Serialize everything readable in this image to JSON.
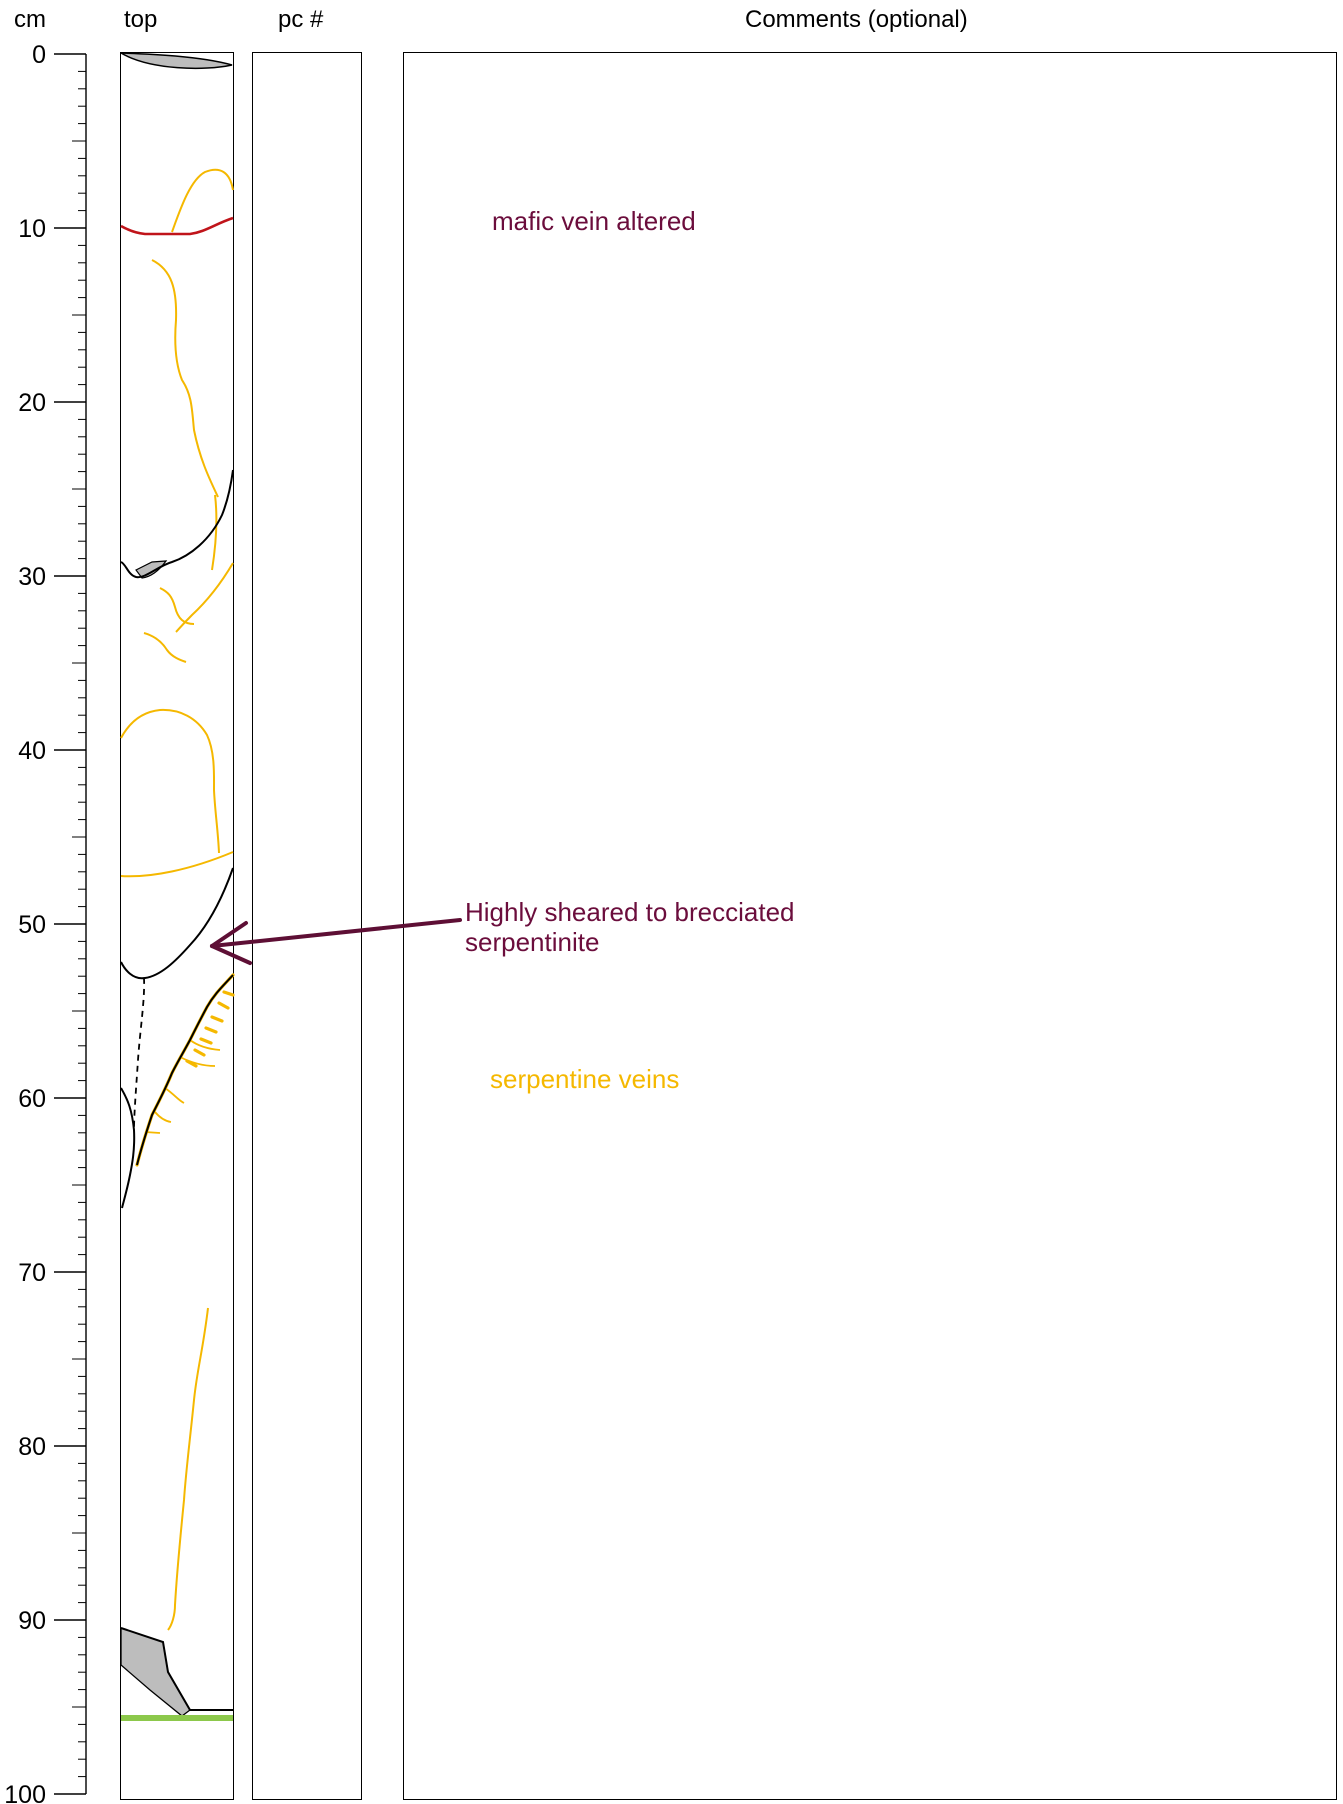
{
  "headers": {
    "depth_unit": "cm",
    "core_top": "top",
    "piece_number": "pc #",
    "comments": "Comments (optional)"
  },
  "depth_axis": {
    "min": 0,
    "max": 100,
    "major_step": 10,
    "minor_step": 1,
    "tick_labels": [
      "0",
      "10",
      "20",
      "30",
      "40",
      "50",
      "60",
      "70",
      "80",
      "90",
      "100"
    ]
  },
  "annotations": {
    "mafic_vein": {
      "text": "mafic vein altered",
      "color": "#6b0d3c"
    },
    "sheared": {
      "line1": "Highly sheared to brecciated",
      "line2": "serpentinite",
      "color": "#6b0d3c"
    },
    "serpentine_veins": {
      "text": "serpentine veins",
      "color": "#f5b800"
    }
  },
  "colors": {
    "serpentine_vein": "#f5b800",
    "mafic_vein": "#c0141a",
    "green_marker": "#8cc84b",
    "fill_gray": "#bdbdbd",
    "annotation_arrow": "#5e0f35"
  }
}
